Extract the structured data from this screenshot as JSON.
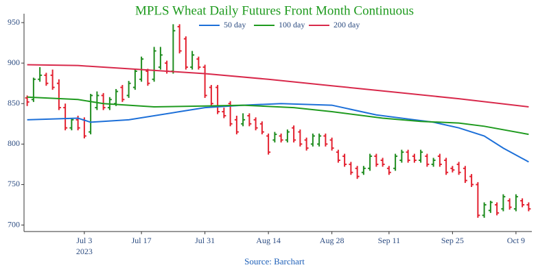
{
  "chart_data": {
    "type": "ohlc",
    "title": "MPLS Wheat Daily Futures Front Month Continuous",
    "source": "Source: Barchart",
    "year": "2023",
    "up_color": "#1e8c1e",
    "down_color": "#e3202f",
    "xlim": [
      -0.5,
      79.5
    ],
    "xticks": [
      {
        "value": 9,
        "label": "Jul 3"
      },
      {
        "value": 18,
        "label": "Jul 17"
      },
      {
        "value": 28,
        "label": "Jul 31"
      },
      {
        "value": 38,
        "label": "Aug 14"
      },
      {
        "value": 48,
        "label": "Aug 28"
      },
      {
        "value": 57,
        "label": "Sep 11"
      },
      {
        "value": 67,
        "label": "Sep 25"
      },
      {
        "value": 77,
        "label": "Oct 9"
      }
    ],
    "ylim": [
      692,
      961
    ],
    "yticks": [
      700,
      750,
      800,
      850,
      900,
      950
    ],
    "open": [
      857,
      855,
      880,
      885,
      885,
      875,
      845,
      820,
      830,
      830,
      815,
      845,
      860,
      845,
      850,
      870,
      860,
      870,
      880,
      890,
      880,
      895,
      900,
      890,
      945,
      930,
      895,
      905,
      895,
      870,
      870,
      840,
      850,
      830,
      825,
      835,
      830,
      825,
      810,
      805,
      810,
      805,
      820,
      815,
      805,
      800,
      800,
      810,
      805,
      790,
      785,
      775,
      770,
      765,
      770,
      785,
      780,
      770,
      770,
      780,
      790,
      785,
      780,
      785,
      775,
      785,
      780,
      770,
      775,
      770,
      760,
      750,
      712,
      718,
      725,
      720,
      730,
      720,
      730,
      725
    ],
    "high": [
      860,
      882,
      895,
      888,
      892,
      880,
      850,
      832,
      835,
      833,
      862,
      865,
      863,
      858,
      868,
      873,
      878,
      893,
      908,
      893,
      920,
      920,
      903,
      948,
      948,
      933,
      915,
      908,
      898,
      873,
      873,
      845,
      853,
      835,
      838,
      838,
      833,
      828,
      813,
      815,
      813,
      818,
      823,
      818,
      808,
      813,
      813,
      813,
      808,
      793,
      788,
      778,
      773,
      773,
      788,
      788,
      783,
      773,
      788,
      793,
      793,
      788,
      793,
      788,
      783,
      788,
      783,
      773,
      778,
      773,
      763,
      753,
      728,
      730,
      728,
      738,
      733,
      738,
      733,
      728
    ],
    "low": [
      847,
      852,
      877,
      872,
      867,
      842,
      817,
      817,
      817,
      807,
      812,
      842,
      842,
      842,
      847,
      852,
      857,
      867,
      877,
      872,
      877,
      892,
      887,
      887,
      912,
      892,
      892,
      892,
      857,
      847,
      837,
      832,
      822,
      812,
      822,
      822,
      817,
      812,
      787,
      802,
      802,
      802,
      802,
      797,
      792,
      797,
      797,
      797,
      792,
      777,
      772,
      762,
      757,
      762,
      767,
      772,
      772,
      762,
      767,
      777,
      777,
      777,
      777,
      772,
      772,
      772,
      762,
      765,
      762,
      752,
      747,
      709,
      709,
      715,
      712,
      717,
      719,
      717,
      722,
      717
    ],
    "close": [
      852,
      880,
      885,
      875,
      870,
      845,
      820,
      830,
      820,
      810,
      860,
      860,
      845,
      855,
      865,
      855,
      875,
      890,
      905,
      875,
      915,
      910,
      890,
      940,
      915,
      895,
      910,
      895,
      860,
      850,
      840,
      835,
      825,
      815,
      830,
      825,
      820,
      815,
      790,
      812,
      805,
      815,
      805,
      800,
      795,
      810,
      810,
      800,
      795,
      780,
      775,
      765,
      760,
      770,
      785,
      775,
      775,
      765,
      785,
      790,
      780,
      780,
      790,
      775,
      780,
      775,
      765,
      768,
      765,
      755,
      750,
      712,
      725,
      728,
      715,
      735,
      722,
      735,
      725,
      720
    ],
    "series": [
      {
        "name": "50 day",
        "color": "#1c6fd8",
        "x": [
          0,
          8,
          10,
          16,
          24,
          28,
          34,
          40,
          48,
          55,
          60,
          64,
          68,
          72,
          75,
          79
        ],
        "values": [
          830,
          832,
          827,
          830,
          840,
          845,
          848,
          850,
          848,
          836,
          831,
          827,
          820,
          810,
          795,
          778
        ]
      },
      {
        "name": "100 day",
        "color": "#1e9a1e",
        "x": [
          0,
          8,
          12,
          20,
          28,
          34,
          42,
          48,
          56,
          62,
          68,
          72,
          79
        ],
        "values": [
          858,
          855,
          850,
          846,
          847,
          848,
          845,
          840,
          832,
          828,
          826,
          822,
          812
        ]
      },
      {
        "name": "200 day",
        "color": "#d8284a",
        "x": [
          0,
          8,
          16,
          28,
          38,
          48,
          58,
          68,
          79
        ],
        "values": [
          898,
          897,
          893,
          887,
          880,
          872,
          864,
          856,
          846
        ]
      }
    ]
  }
}
